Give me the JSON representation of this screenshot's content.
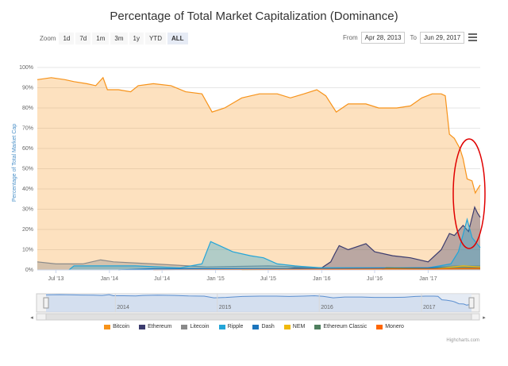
{
  "title": "Percentage of Total Market Capitalization (Dominance)",
  "zoom": {
    "label": "Zoom",
    "buttons": [
      "1d",
      "7d",
      "1m",
      "3m",
      "1y",
      "YTD",
      "ALL"
    ],
    "active": "ALL"
  },
  "range": {
    "from_label": "From",
    "from_value": "Apr 28, 2013",
    "to_label": "To",
    "to_value": "Jun 29, 2017"
  },
  "credit": "Highcharts.com",
  "colors": {
    "Bitcoin": "#f7931a",
    "Ethereum": "#3c3c6e",
    "Litecoin": "#8a8a8a",
    "Ripple": "#23a5d8",
    "Dash": "#1c75bc",
    "NEM": "#f0b90b",
    "Ethereum Classic": "#4f7f5f",
    "Monero": "#ff6600",
    "annotation": "#e00000",
    "navigator": "#5b8fd0"
  },
  "chart_data": {
    "type": "area",
    "title": "Percentage of Total Market Capitalization (Dominance)",
    "ylabel": "Percentage of Total Market Cap",
    "ylim": [
      0,
      100
    ],
    "yticks": [
      0,
      10,
      20,
      30,
      40,
      50,
      60,
      70,
      80,
      90,
      100
    ],
    "ytick_labels": [
      "0%",
      "10%",
      "20%",
      "30%",
      "40%",
      "50%",
      "60%",
      "70%",
      "80%",
      "90%",
      "100%"
    ],
    "xlim": [
      "2013-04-28",
      "2017-06-29"
    ],
    "xtick_labels": [
      "Jul '13",
      "Jan '14",
      "Jul '14",
      "Jan '15",
      "Jul '15",
      "Jan '16",
      "Jul '16",
      "Jan '17"
    ],
    "xtick_dates": [
      "2013-07-01",
      "2014-01-01",
      "2014-07-01",
      "2015-01-01",
      "2015-07-01",
      "2016-01-01",
      "2016-07-01",
      "2017-01-01"
    ],
    "navigator_labels": [
      "2014",
      "2015",
      "2016",
      "2017"
    ],
    "navigator_dates": [
      "2014-01-01",
      "2015-01-01",
      "2016-01-01",
      "2017-01-01"
    ],
    "legend": [
      "Bitcoin",
      "Ethereum",
      "Litecoin",
      "Ripple",
      "Dash",
      "NEM",
      "Ethereum Classic",
      "Monero"
    ],
    "series": [
      {
        "name": "Bitcoin",
        "points": [
          [
            "2013-04-28",
            94
          ],
          [
            "2013-06-15",
            95
          ],
          [
            "2013-08-01",
            94
          ],
          [
            "2013-09-01",
            93
          ],
          [
            "2013-10-15",
            92
          ],
          [
            "2013-11-15",
            91
          ],
          [
            "2013-12-10",
            95
          ],
          [
            "2013-12-25",
            89
          ],
          [
            "2014-02-01",
            89
          ],
          [
            "2014-03-15",
            88
          ],
          [
            "2014-04-10",
            91
          ],
          [
            "2014-06-01",
            92
          ],
          [
            "2014-08-01",
            91
          ],
          [
            "2014-09-20",
            88
          ],
          [
            "2014-11-15",
            87
          ],
          [
            "2014-12-20",
            78
          ],
          [
            "2015-02-01",
            80
          ],
          [
            "2015-04-01",
            85
          ],
          [
            "2015-06-01",
            87
          ],
          [
            "2015-08-01",
            87
          ],
          [
            "2015-09-15",
            85
          ],
          [
            "2015-11-01",
            87
          ],
          [
            "2015-12-15",
            89
          ],
          [
            "2016-01-15",
            86
          ],
          [
            "2016-02-20",
            78
          ],
          [
            "2016-04-01",
            82
          ],
          [
            "2016-06-01",
            82
          ],
          [
            "2016-07-15",
            80
          ],
          [
            "2016-09-15",
            80
          ],
          [
            "2016-11-01",
            81
          ],
          [
            "2016-12-10",
            85
          ],
          [
            "2017-01-15",
            87
          ],
          [
            "2017-02-15",
            87
          ],
          [
            "2017-03-01",
            86
          ],
          [
            "2017-03-15",
            67
          ],
          [
            "2017-04-01",
            65
          ],
          [
            "2017-04-20",
            60
          ],
          [
            "2017-05-01",
            55
          ],
          [
            "2017-05-15",
            45
          ],
          [
            "2017-06-01",
            44
          ],
          [
            "2017-06-12",
            38
          ],
          [
            "2017-06-20",
            40
          ],
          [
            "2017-06-29",
            42
          ]
        ]
      },
      {
        "name": "Ethereum",
        "points": [
          [
            "2015-08-07",
            0
          ],
          [
            "2015-10-01",
            1
          ],
          [
            "2016-01-01",
            1
          ],
          [
            "2016-02-01",
            4
          ],
          [
            "2016-02-15",
            8
          ],
          [
            "2016-03-01",
            12
          ],
          [
            "2016-04-01",
            10
          ],
          [
            "2016-06-01",
            13
          ],
          [
            "2016-07-01",
            9
          ],
          [
            "2016-09-01",
            7
          ],
          [
            "2016-11-01",
            6
          ],
          [
            "2017-01-01",
            4
          ],
          [
            "2017-02-15",
            10
          ],
          [
            "2017-03-15",
            18
          ],
          [
            "2017-04-01",
            17
          ],
          [
            "2017-05-01",
            22
          ],
          [
            "2017-05-20",
            19
          ],
          [
            "2017-06-10",
            31
          ],
          [
            "2017-06-20",
            28
          ],
          [
            "2017-06-29",
            26
          ]
        ]
      },
      {
        "name": "Litecoin",
        "points": [
          [
            "2013-04-28",
            4
          ],
          [
            "2013-07-01",
            3
          ],
          [
            "2013-10-01",
            3
          ],
          [
            "2013-12-01",
            5
          ],
          [
            "2014-01-15",
            4
          ],
          [
            "2014-06-01",
            3
          ],
          [
            "2014-12-01",
            1.5
          ],
          [
            "2015-07-01",
            2
          ],
          [
            "2016-01-01",
            1
          ],
          [
            "2017-01-01",
            1
          ],
          [
            "2017-04-01",
            2
          ],
          [
            "2017-06-29",
            2
          ]
        ]
      },
      {
        "name": "Ripple",
        "points": [
          [
            "2013-08-15",
            0
          ],
          [
            "2013-09-01",
            2
          ],
          [
            "2014-01-01",
            2
          ],
          [
            "2014-04-01",
            2
          ],
          [
            "2014-09-01",
            1
          ],
          [
            "2014-11-15",
            3
          ],
          [
            "2014-12-15",
            14
          ],
          [
            "2015-01-15",
            12
          ],
          [
            "2015-03-01",
            9
          ],
          [
            "2015-05-01",
            7
          ],
          [
            "2015-06-15",
            6
          ],
          [
            "2015-08-01",
            3
          ],
          [
            "2015-10-01",
            2
          ],
          [
            "2016-01-01",
            1
          ],
          [
            "2017-01-01",
            1
          ],
          [
            "2017-03-20",
            3
          ],
          [
            "2017-04-15",
            9
          ],
          [
            "2017-05-15",
            25
          ],
          [
            "2017-06-01",
            16
          ],
          [
            "2017-06-29",
            11
          ]
        ]
      },
      {
        "name": "Dash",
        "points": [
          [
            "2014-02-01",
            0
          ],
          [
            "2014-06-01",
            0.6
          ],
          [
            "2016-01-01",
            0.6
          ],
          [
            "2017-01-01",
            1
          ],
          [
            "2017-04-01",
            1.5
          ],
          [
            "2017-06-29",
            1.2
          ]
        ]
      },
      {
        "name": "NEM",
        "points": [
          [
            "2015-04-01",
            0
          ],
          [
            "2017-01-01",
            0.3
          ],
          [
            "2017-05-01",
            2
          ],
          [
            "2017-06-29",
            1.5
          ]
        ]
      },
      {
        "name": "Ethereum Classic",
        "points": [
          [
            "2016-07-25",
            0
          ],
          [
            "2016-08-10",
            1
          ],
          [
            "2017-01-01",
            0.6
          ],
          [
            "2017-06-29",
            0.9
          ]
        ]
      },
      {
        "name": "Monero",
        "points": [
          [
            "2014-06-01",
            0
          ],
          [
            "2016-09-01",
            0.5
          ],
          [
            "2017-01-01",
            0.4
          ],
          [
            "2017-06-29",
            0.8
          ]
        ]
      }
    ]
  }
}
